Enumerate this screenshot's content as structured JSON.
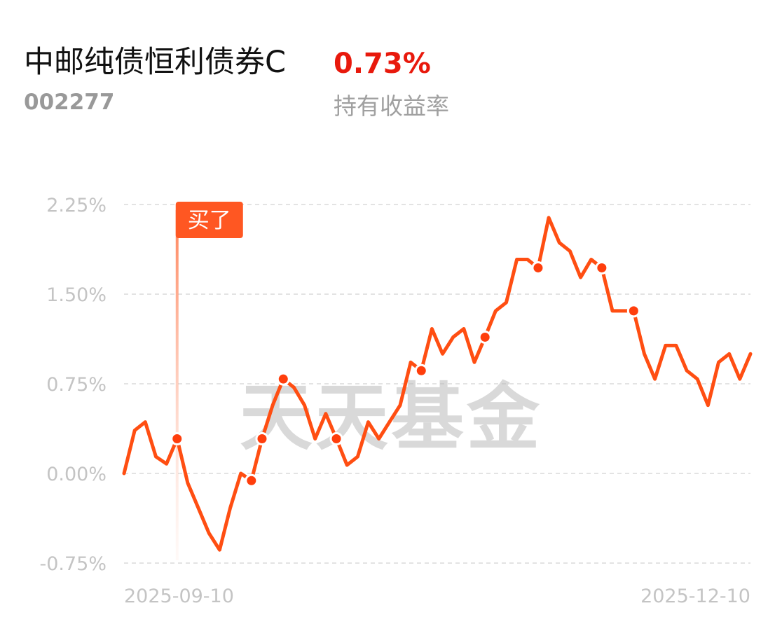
{
  "header": {
    "fund_name": "中邮纯债恒利债券C",
    "fund_code": "002277",
    "return_value": "0.73%",
    "return_label": "持有收益率"
  },
  "watermark": "天天基金",
  "buy_marker": {
    "label": "买了",
    "index": 5
  },
  "colors": {
    "line": "#ff4e12",
    "marker": "#ff3e0c",
    "return": "#e8190c",
    "badge": "#ff5722"
  },
  "chart_data": {
    "type": "line",
    "title": "",
    "xlabel": "",
    "ylabel": "",
    "ylim": [
      -0.75,
      2.25
    ],
    "y_ticks": [
      2.25,
      1.5,
      0.75,
      0.0,
      -0.75
    ],
    "y_tick_labels": [
      "2.25%",
      "1.50%",
      "0.75%",
      "0.00%",
      "-0.75%"
    ],
    "x_tick_labels": [
      "2025-09-10",
      "2025-12-10"
    ],
    "grid": true,
    "series": [
      {
        "values": [
          0.0,
          0.36,
          0.43,
          0.14,
          0.08,
          0.29,
          -0.08,
          -0.29,
          -0.5,
          -0.64,
          -0.29,
          0.0,
          -0.06,
          0.29,
          0.57,
          0.79,
          0.72,
          0.57,
          0.29,
          0.5,
          0.29,
          0.07,
          0.14,
          0.43,
          0.29,
          0.43,
          0.57,
          0.93,
          0.86,
          1.21,
          1.0,
          1.14,
          1.21,
          0.93,
          1.14,
          1.36,
          1.43,
          1.79,
          1.79,
          1.72,
          2.14,
          1.93,
          1.86,
          1.64,
          1.79,
          1.72,
          1.36,
          1.36,
          1.36,
          1.0,
          0.79,
          1.07,
          1.07,
          0.86,
          0.79,
          0.57,
          0.93,
          1.0,
          0.79,
          1.0
        ],
        "markers": [
          5,
          12,
          13,
          15,
          20,
          28,
          34,
          39,
          45,
          48
        ]
      }
    ]
  }
}
